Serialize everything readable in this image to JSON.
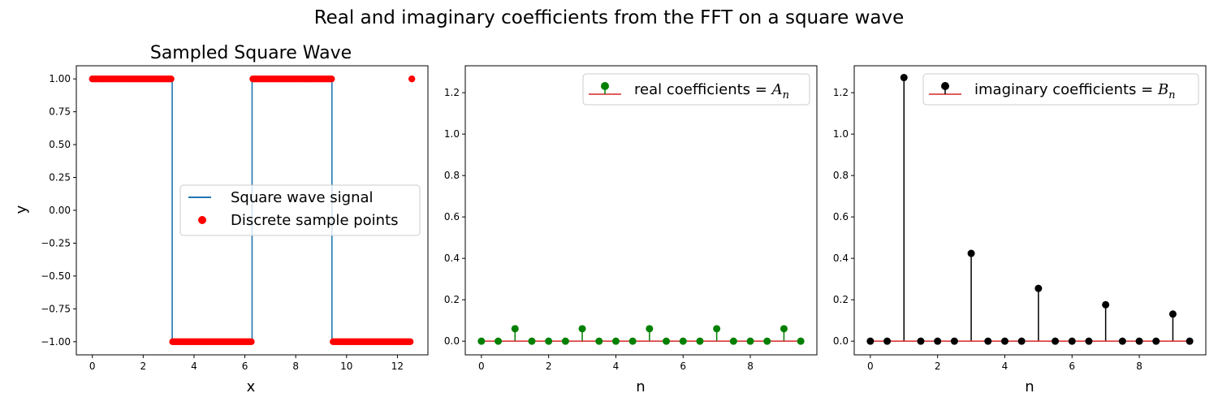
{
  "figure": {
    "suptitle": "Real and imaginary coefficients from the FFT on a square wave"
  },
  "chart_data": [
    {
      "type": "line",
      "title": "Sampled Square Wave",
      "xlabel": "x",
      "ylabel": "y",
      "xlim": [
        -0.63,
        13.2
      ],
      "ylim": [
        -1.1,
        1.1
      ],
      "xticks": [
        0,
        2,
        4,
        6,
        8,
        10,
        12
      ],
      "yticks": [
        -1.0,
        -0.75,
        -0.5,
        -0.25,
        0.0,
        0.25,
        0.5,
        0.75,
        1.0
      ],
      "ytick_labels": [
        "−1.00",
        "−0.75",
        "−0.50",
        "−0.25",
        "0.00",
        "0.25",
        "0.50",
        "0.75",
        "1.00"
      ],
      "legend_position": "center-right",
      "series": [
        {
          "name": "Square wave signal",
          "kind": "line",
          "color": "#1f77b4",
          "period": 6.283,
          "x_start": 0,
          "x_end": 12.566,
          "high": 1,
          "low": -1
        },
        {
          "name": "Discrete sample points",
          "kind": "scatter",
          "color": "#ff0000",
          "count": 200,
          "x_start": 0,
          "x_end": 12.566
        }
      ]
    },
    {
      "type": "stem",
      "title": "",
      "xlabel": "n",
      "ylabel": "",
      "xlim": [
        -0.48,
        9.98
      ],
      "ylim": [
        -0.066,
        1.33
      ],
      "xticks": [
        0,
        2,
        4,
        6,
        8
      ],
      "yticks": [
        0.0,
        0.2,
        0.4,
        0.6,
        0.8,
        1.0,
        1.2
      ],
      "ytick_labels": [
        "0.0",
        "0.2",
        "0.4",
        "0.6",
        "0.8",
        "1.0",
        "1.2"
      ],
      "legend_position": "top-right",
      "series": [
        {
          "name": "real coefficients = ",
          "name_math": "A",
          "name_sub": "n",
          "marker_color": "#008000",
          "baseline_color": "#d62728",
          "x": [
            0,
            0.5,
            1,
            1.5,
            2,
            2.5,
            3,
            3.5,
            4,
            4.5,
            5,
            5.5,
            6,
            6.5,
            7,
            7.5,
            8,
            8.5,
            9,
            9.5
          ],
          "y": [
            0,
            0,
            0.06,
            0,
            0,
            0,
            0.06,
            0,
            0,
            0,
            0.06,
            0,
            0,
            0,
            0.06,
            0,
            0,
            0,
            0.06,
            0
          ]
        }
      ]
    },
    {
      "type": "stem",
      "title": "",
      "xlabel": "n",
      "ylabel": "",
      "xlim": [
        -0.48,
        9.98
      ],
      "ylim": [
        -0.066,
        1.33
      ],
      "xticks": [
        0,
        2,
        4,
        6,
        8
      ],
      "yticks": [
        0.0,
        0.2,
        0.4,
        0.6,
        0.8,
        1.0,
        1.2
      ],
      "ytick_labels": [
        "0.0",
        "0.2",
        "0.4",
        "0.6",
        "0.8",
        "1.0",
        "1.2"
      ],
      "legend_position": "top-right",
      "series": [
        {
          "name": "imaginary coefficients = ",
          "name_math": "B",
          "name_sub": "n",
          "marker_color": "#000000",
          "baseline_color": "#d62728",
          "x": [
            0,
            0.5,
            1,
            1.5,
            2,
            2.5,
            3,
            3.5,
            4,
            4.5,
            5,
            5.5,
            6,
            6.5,
            7,
            7.5,
            8,
            8.5,
            9,
            9.5
          ],
          "y": [
            0,
            0,
            1.273,
            0,
            0,
            0,
            0.424,
            0,
            0,
            0,
            0.255,
            0,
            0,
            0,
            0.176,
            0,
            0,
            0,
            0.131,
            0
          ]
        }
      ]
    }
  ]
}
